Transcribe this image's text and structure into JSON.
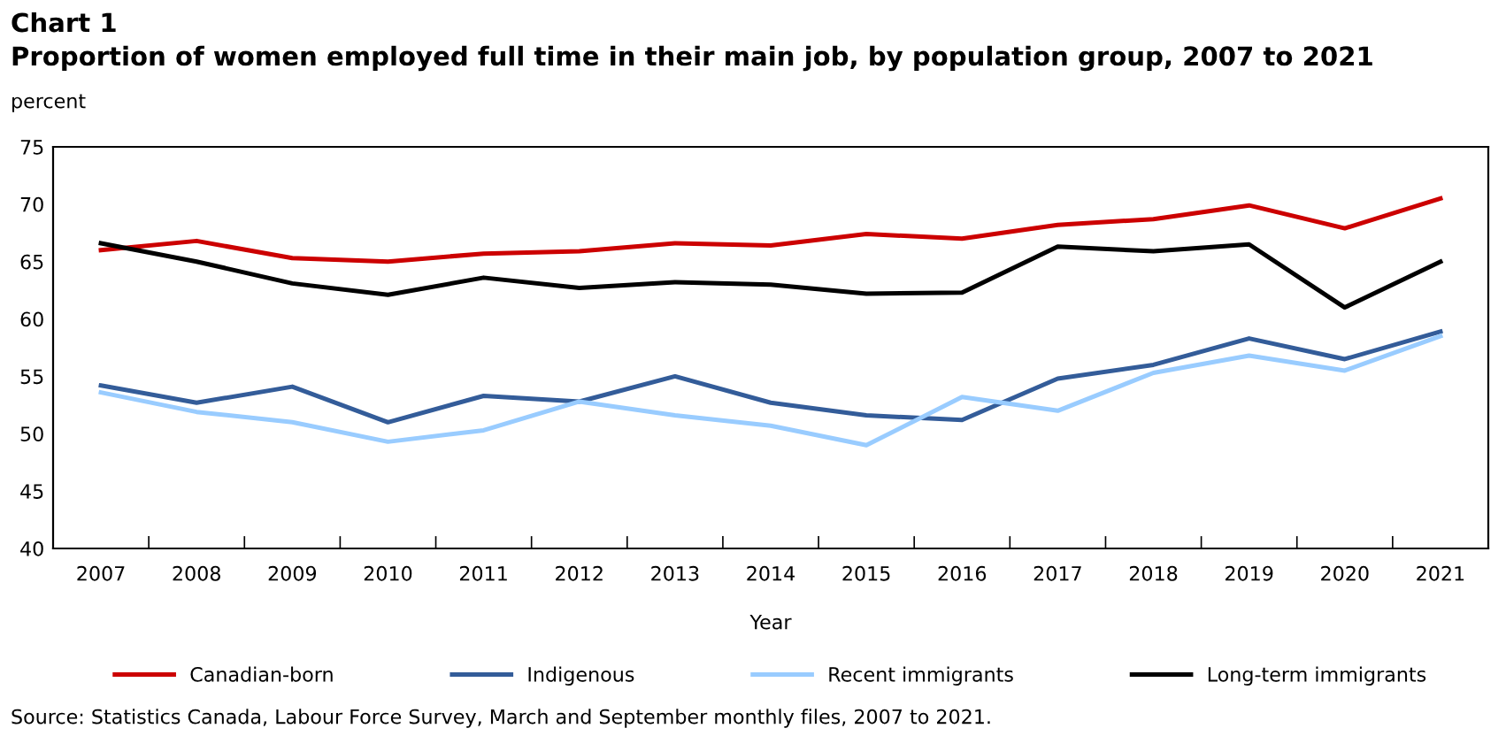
{
  "chart_data": {
    "type": "line",
    "title": "Chart 1",
    "subtitle": "Proportion of women employed full time in their main job, by population group, 2007 to 2021",
    "ylabel": "percent",
    "xlabel": "Year",
    "categories": [
      "2007",
      "2008",
      "2009",
      "2010",
      "2011",
      "2012",
      "2013",
      "2014",
      "2015",
      "2016",
      "2017",
      "2018",
      "2019",
      "2020",
      "2021"
    ],
    "series": [
      {
        "name": "Canadian-born",
        "color": "#cc0000",
        "values": [
          66.0,
          66.8,
          65.3,
          65.0,
          65.7,
          65.9,
          66.6,
          66.4,
          67.4,
          67.0,
          68.2,
          68.7,
          69.9,
          67.9,
          70.5
        ]
      },
      {
        "name": "Indigenous",
        "color": "#335c99",
        "values": [
          54.2,
          52.7,
          54.1,
          51.0,
          53.3,
          52.8,
          55.0,
          52.7,
          51.6,
          51.2,
          54.8,
          56.0,
          58.3,
          56.5,
          58.9
        ]
      },
      {
        "name": "Recent immigrants",
        "color": "#99ccff",
        "values": [
          53.6,
          51.9,
          51.0,
          49.3,
          50.3,
          52.8,
          51.6,
          50.7,
          49.0,
          53.2,
          52.0,
          55.3,
          56.8,
          55.5,
          58.5
        ]
      },
      {
        "name": "Long-term immigrants",
        "color": "#000000",
        "values": [
          66.6,
          65.0,
          63.1,
          62.1,
          63.6,
          62.7,
          63.2,
          63.0,
          62.2,
          62.3,
          66.3,
          65.9,
          66.5,
          61.0,
          65.0
        ]
      }
    ],
    "ylim": [
      40,
      75
    ],
    "yticks": [
      40,
      45,
      50,
      55,
      60,
      65,
      70,
      75
    ],
    "grid": false,
    "legend": "bottom",
    "marker": "none",
    "line_style": "solid",
    "annotations": [
      "Source: Statistics Canada, Labour Force Survey, March and September monthly files, 2007 to 2021."
    ]
  }
}
